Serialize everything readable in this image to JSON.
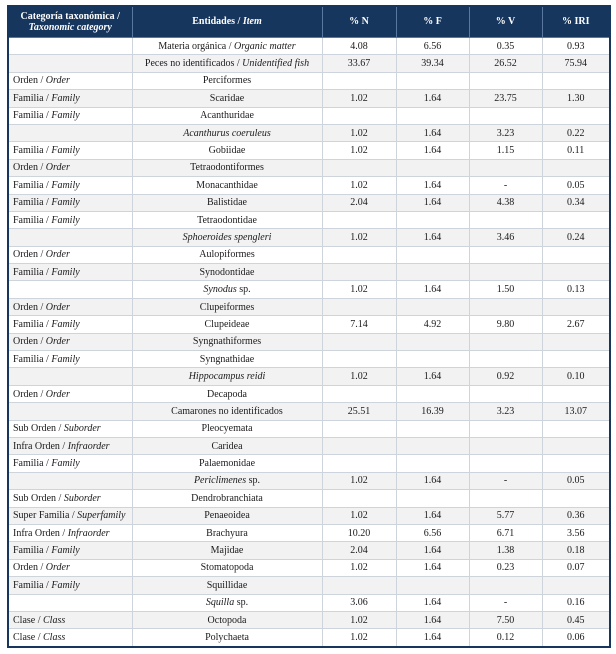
{
  "colors": {
    "header_bg": "#17365D",
    "header_text": "#FFFFFF",
    "alt_row": "#F2F2F2",
    "border": "#CDD4DB"
  },
  "table": {
    "headers": [
      {
        "segments": [
          {
            "t": "Categoría taxonómica / "
          },
          {
            "t": "Taxonomic category",
            "i": true
          }
        ]
      },
      {
        "segments": [
          {
            "t": "Entidades / "
          },
          {
            "t": "Item",
            "i": true
          }
        ]
      },
      {
        "segments": [
          {
            "t": "% N"
          }
        ]
      },
      {
        "segments": [
          {
            "t": "% F"
          }
        ]
      },
      {
        "segments": [
          {
            "t": "% V"
          }
        ]
      },
      {
        "segments": [
          {
            "t": "% IRI"
          }
        ]
      }
    ],
    "rows": [
      {
        "category": [],
        "item": [
          {
            "t": "Materia orgánica / "
          },
          {
            "t": "Organic matter",
            "i": true
          }
        ],
        "n": "4.08",
        "f": "6.56",
        "v": "0.35",
        "iri": "0.93"
      },
      {
        "category": [],
        "item": [
          {
            "t": "Peces no identificados / "
          },
          {
            "t": "Unidentified fish",
            "i": true
          }
        ],
        "n": "33.67",
        "f": "39.34",
        "v": "26.52",
        "iri": "75.94"
      },
      {
        "category": [
          {
            "t": "Orden / "
          },
          {
            "t": "Order",
            "i": true
          }
        ],
        "item": [
          {
            "t": "Perciformes"
          }
        ],
        "n": "",
        "f": "",
        "v": "",
        "iri": ""
      },
      {
        "category": [
          {
            "t": "Familia / "
          },
          {
            "t": "Family",
            "i": true
          }
        ],
        "item": [
          {
            "t": "Scaridae"
          }
        ],
        "n": "1.02",
        "f": "1.64",
        "v": "23.75",
        "iri": "1.30"
      },
      {
        "category": [
          {
            "t": "Familia / "
          },
          {
            "t": "Family",
            "i": true
          }
        ],
        "item": [
          {
            "t": "Acanthuridae"
          }
        ],
        "n": "",
        "f": "",
        "v": "",
        "iri": ""
      },
      {
        "category": [],
        "item": [
          {
            "t": "Acanthurus coeruleus",
            "i": true
          }
        ],
        "n": "1.02",
        "f": "1.64",
        "v": "3.23",
        "iri": "0.22"
      },
      {
        "category": [
          {
            "t": "Familia / "
          },
          {
            "t": "Family",
            "i": true
          }
        ],
        "item": [
          {
            "t": "Gobiidae"
          }
        ],
        "n": "1.02",
        "f": "1.64",
        "v": "1.15",
        "iri": "0.11"
      },
      {
        "category": [
          {
            "t": "Orden / "
          },
          {
            "t": "Order",
            "i": true
          }
        ],
        "item": [
          {
            "t": "Tetraodontiformes"
          }
        ],
        "n": "",
        "f": "",
        "v": "",
        "iri": ""
      },
      {
        "category": [
          {
            "t": "Familia / "
          },
          {
            "t": "Family",
            "i": true
          }
        ],
        "item": [
          {
            "t": "Monacanthidae"
          }
        ],
        "n": "1.02",
        "f": "1.64",
        "v": "-",
        "iri": "0.05"
      },
      {
        "category": [
          {
            "t": "Familia / "
          },
          {
            "t": "Family",
            "i": true
          }
        ],
        "item": [
          {
            "t": "Balistidae"
          }
        ],
        "n": "2.04",
        "f": "1.64",
        "v": "4.38",
        "iri": "0.34"
      },
      {
        "category": [
          {
            "t": "Familia / "
          },
          {
            "t": "Family",
            "i": true
          }
        ],
        "item": [
          {
            "t": "Tetraodontidae"
          }
        ],
        "n": "",
        "f": "",
        "v": "",
        "iri": ""
      },
      {
        "category": [],
        "item": [
          {
            "t": "Sphoeroides spengleri",
            "i": true
          }
        ],
        "n": "1.02",
        "f": "1.64",
        "v": "3.46",
        "iri": "0.24"
      },
      {
        "category": [
          {
            "t": "Orden / "
          },
          {
            "t": "Order",
            "i": true
          }
        ],
        "item": [
          {
            "t": "Aulopiformes"
          }
        ],
        "n": "",
        "f": "",
        "v": "",
        "iri": ""
      },
      {
        "category": [
          {
            "t": "Familia / "
          },
          {
            "t": "Family",
            "i": true
          }
        ],
        "item": [
          {
            "t": "Synodontidae"
          }
        ],
        "n": "",
        "f": "",
        "v": "",
        "iri": ""
      },
      {
        "category": [],
        "item": [
          {
            "t": "Synodus",
            "i": true
          },
          {
            "t": " sp."
          }
        ],
        "n": "1.02",
        "f": "1.64",
        "v": "1.50",
        "iri": "0.13"
      },
      {
        "category": [
          {
            "t": "Orden / "
          },
          {
            "t": "Order",
            "i": true
          }
        ],
        "item": [
          {
            "t": "Clupeiformes"
          }
        ],
        "n": "",
        "f": "",
        "v": "",
        "iri": ""
      },
      {
        "category": [
          {
            "t": "Familia / "
          },
          {
            "t": "Family",
            "i": true
          }
        ],
        "item": [
          {
            "t": "Clupeideae"
          }
        ],
        "n": "7.14",
        "f": "4.92",
        "v": "9.80",
        "iri": "2.67"
      },
      {
        "category": [
          {
            "t": "Orden / "
          },
          {
            "t": "Order",
            "i": true
          }
        ],
        "item": [
          {
            "t": "Syngnathiformes"
          }
        ],
        "n": "",
        "f": "",
        "v": "",
        "iri": ""
      },
      {
        "category": [
          {
            "t": "Familia / "
          },
          {
            "t": "Family",
            "i": true
          }
        ],
        "item": [
          {
            "t": "Syngnathidae"
          }
        ],
        "n": "",
        "f": "",
        "v": "",
        "iri": ""
      },
      {
        "category": [],
        "item": [
          {
            "t": "Hippocampus reidi",
            "i": true
          }
        ],
        "n": "1.02",
        "f": "1.64",
        "v": "0.92",
        "iri": "0.10"
      },
      {
        "category": [
          {
            "t": "Orden / "
          },
          {
            "t": "Order",
            "i": true
          }
        ],
        "item": [
          {
            "t": "Decapoda"
          }
        ],
        "n": "",
        "f": "",
        "v": "",
        "iri": ""
      },
      {
        "category": [],
        "item": [
          {
            "t": "Camarones no identificados"
          }
        ],
        "n": "25.51",
        "f": "16.39",
        "v": "3.23",
        "iri": "13.07"
      },
      {
        "category": [
          {
            "t": "Sub Orden / "
          },
          {
            "t": "Suborder",
            "i": true
          }
        ],
        "item": [
          {
            "t": "Pleocyemata"
          }
        ],
        "n": "",
        "f": "",
        "v": "",
        "iri": ""
      },
      {
        "category": [
          {
            "t": "Infra Orden / "
          },
          {
            "t": "Infraorder",
            "i": true
          }
        ],
        "item": [
          {
            "t": "Caridea"
          }
        ],
        "n": "",
        "f": "",
        "v": "",
        "iri": ""
      },
      {
        "category": [
          {
            "t": "Familia / "
          },
          {
            "t": "Family",
            "i": true
          }
        ],
        "item": [
          {
            "t": "Palaemonidae"
          }
        ],
        "n": "",
        "f": "",
        "v": "",
        "iri": ""
      },
      {
        "category": [],
        "item": [
          {
            "t": "Periclimenes",
            "i": true
          },
          {
            "t": " sp."
          }
        ],
        "n": "1.02",
        "f": "1.64",
        "v": "-",
        "iri": "0.05"
      },
      {
        "category": [
          {
            "t": "Sub Orden / "
          },
          {
            "t": "Suborder",
            "i": true
          }
        ],
        "item": [
          {
            "t": "Dendrobranchiata"
          }
        ],
        "n": "",
        "f": "",
        "v": "",
        "iri": ""
      },
      {
        "category": [
          {
            "t": "Super Familia / "
          },
          {
            "t": "Superfamily",
            "i": true
          }
        ],
        "item": [
          {
            "t": "Penaeoidea"
          }
        ],
        "n": "1.02",
        "f": "1.64",
        "v": "5.77",
        "iri": "0.36"
      },
      {
        "category": [
          {
            "t": "Infra Orden / "
          },
          {
            "t": "Infraorder",
            "i": true
          }
        ],
        "item": [
          {
            "t": "Brachyura"
          }
        ],
        "n": "10.20",
        "f": "6.56",
        "v": "6.71",
        "iri": "3.56"
      },
      {
        "category": [
          {
            "t": "Familia / "
          },
          {
            "t": "Family",
            "i": true
          }
        ],
        "item": [
          {
            "t": "Majidae"
          }
        ],
        "n": "2.04",
        "f": "1.64",
        "v": "1.38",
        "iri": "0.18"
      },
      {
        "category": [
          {
            "t": "Orden / "
          },
          {
            "t": "Order",
            "i": true
          }
        ],
        "item": [
          {
            "t": "Stomatopoda"
          }
        ],
        "n": "1.02",
        "f": "1.64",
        "v": "0.23",
        "iri": "0.07"
      },
      {
        "category": [
          {
            "t": "Familia / "
          },
          {
            "t": "Family",
            "i": true
          }
        ],
        "item": [
          {
            "t": "Squillidae"
          }
        ],
        "n": "",
        "f": "",
        "v": "",
        "iri": ""
      },
      {
        "category": [],
        "item": [
          {
            "t": "Squilla",
            "i": true
          },
          {
            "t": " sp."
          }
        ],
        "n": "3.06",
        "f": "1.64",
        "v": "-",
        "iri": "0.16"
      },
      {
        "category": [
          {
            "t": "Clase / "
          },
          {
            "t": "Class",
            "i": true
          }
        ],
        "item": [
          {
            "t": "Octopoda"
          }
        ],
        "n": "1.02",
        "f": "1.64",
        "v": "7.50",
        "iri": "0.45"
      },
      {
        "category": [
          {
            "t": "Clase / "
          },
          {
            "t": "Class",
            "i": true
          }
        ],
        "item": [
          {
            "t": "Polychaeta"
          }
        ],
        "n": "1.02",
        "f": "1.64",
        "v": "0.12",
        "iri": "0.06"
      }
    ]
  }
}
